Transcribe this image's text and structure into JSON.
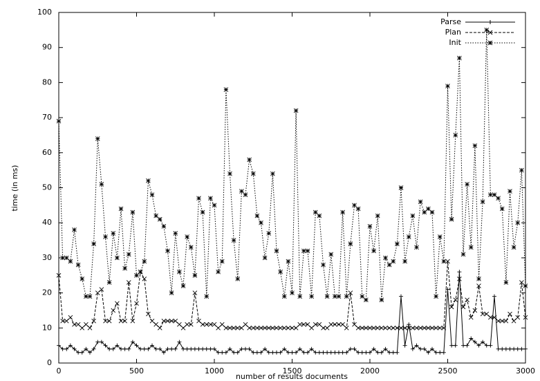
{
  "chart_data": {
    "type": "line",
    "xlabel": "number of results documents",
    "ylabel": "time (in ms)",
    "xlim": [
      0,
      3000
    ],
    "xticks": [
      0,
      500,
      1000,
      1500,
      2000,
      2500,
      3000
    ],
    "ylim": [
      0,
      100
    ],
    "yticks": [
      0,
      10,
      20,
      30,
      40,
      50,
      60,
      70,
      80,
      90,
      100
    ],
    "legend": "top-right",
    "x": [
      0,
      25,
      50,
      75,
      100,
      125,
      150,
      175,
      200,
      225,
      250,
      275,
      300,
      325,
      350,
      375,
      400,
      425,
      450,
      475,
      500,
      525,
      550,
      575,
      600,
      625,
      650,
      675,
      700,
      725,
      750,
      775,
      800,
      825,
      850,
      875,
      900,
      925,
      950,
      975,
      1000,
      1025,
      1050,
      1075,
      1100,
      1125,
      1150,
      1175,
      1200,
      1225,
      1250,
      1275,
      1300,
      1325,
      1350,
      1375,
      1400,
      1425,
      1450,
      1475,
      1500,
      1525,
      1550,
      1575,
      1600,
      1625,
      1650,
      1675,
      1700,
      1725,
      1750,
      1775,
      1800,
      1825,
      1850,
      1875,
      1900,
      1925,
      1950,
      1975,
      2000,
      2025,
      2050,
      2075,
      2100,
      2125,
      2150,
      2175,
      2200,
      2225,
      2250,
      2275,
      2300,
      2325,
      2350,
      2375,
      2400,
      2425,
      2450,
      2475,
      2500,
      2525,
      2550,
      2575,
      2600,
      2625,
      2650,
      2675,
      2700,
      2725,
      2750,
      2775,
      2800,
      2825,
      2850,
      2875,
      2900,
      2925,
      2950,
      2975,
      3000
    ],
    "series": [
      {
        "name": "Parse",
        "color": "#000000",
        "dash": "solid",
        "marker": "plus",
        "values": [
          5,
          4,
          4,
          5,
          4,
          3,
          3,
          4,
          3,
          4,
          6,
          6,
          5,
          4,
          4,
          5,
          4,
          4,
          4,
          6,
          5,
          4,
          4,
          4,
          5,
          4,
          4,
          3,
          4,
          4,
          4,
          6,
          4,
          4,
          4,
          4,
          4,
          4,
          4,
          4,
          4,
          3,
          3,
          3,
          4,
          3,
          3,
          4,
          4,
          4,
          3,
          3,
          3,
          4,
          3,
          3,
          3,
          3,
          4,
          3,
          3,
          3,
          4,
          3,
          3,
          4,
          3,
          3,
          3,
          3,
          3,
          3,
          3,
          3,
          3,
          4,
          4,
          3,
          3,
          3,
          3,
          4,
          3,
          3,
          4,
          3,
          3,
          3,
          19,
          5,
          11,
          4,
          5,
          4,
          4,
          3,
          4,
          3,
          3,
          3,
          21,
          5,
          5,
          26,
          5,
          5,
          7,
          6,
          5,
          6,
          5,
          5,
          19,
          4,
          4,
          4,
          4,
          4,
          4,
          4,
          4
        ]
      },
      {
        "name": "Plan",
        "color": "#000000",
        "dash": "dashed",
        "marker": "cross",
        "values": [
          25,
          12,
          12,
          13,
          11,
          11,
          10,
          11,
          10,
          12,
          20,
          21,
          12,
          12,
          15,
          17,
          12,
          12,
          23,
          12,
          17,
          26,
          24,
          14,
          12,
          11,
          10,
          12,
          12,
          12,
          12,
          11,
          10,
          11,
          11,
          20,
          12,
          11,
          11,
          11,
          11,
          10,
          11,
          10,
          10,
          10,
          10,
          10,
          11,
          10,
          10,
          10,
          10,
          10,
          10,
          10,
          10,
          10,
          10,
          10,
          10,
          10,
          11,
          11,
          11,
          10,
          11,
          11,
          10,
          10,
          11,
          11,
          11,
          11,
          10,
          20,
          11,
          10,
          10,
          10,
          10,
          10,
          10,
          10,
          10,
          10,
          10,
          10,
          10,
          10,
          10,
          10,
          10,
          10,
          10,
          10,
          10,
          10,
          10,
          10,
          29,
          16,
          18,
          24,
          16,
          18,
          13,
          15,
          22,
          14,
          14,
          13,
          13,
          12,
          12,
          12,
          14,
          12,
          13,
          23,
          13
        ]
      },
      {
        "name": "Init",
        "color": "#000000",
        "dash": "dotted",
        "marker": "star",
        "values": [
          69,
          30,
          30,
          29,
          38,
          28,
          24,
          19,
          19,
          34,
          64,
          51,
          36,
          23,
          37,
          30,
          44,
          27,
          31,
          43,
          25,
          26,
          29,
          52,
          48,
          42,
          41,
          39,
          32,
          20,
          37,
          26,
          22,
          36,
          33,
          25,
          47,
          43,
          19,
          47,
          45,
          26,
          29,
          78,
          54,
          35,
          24,
          49,
          48,
          58,
          54,
          42,
          40,
          30,
          37,
          54,
          32,
          26,
          19,
          29,
          20,
          72,
          19,
          32,
          32,
          19,
          43,
          42,
          28,
          19,
          31,
          19,
          19,
          43,
          19,
          34,
          45,
          44,
          19,
          18,
          39,
          32,
          42,
          18,
          30,
          28,
          29,
          34,
          50,
          29,
          36,
          42,
          33,
          46,
          43,
          44,
          43,
          19,
          36,
          29,
          79,
          41,
          65,
          87,
          31,
          51,
          33,
          62,
          24,
          46,
          95,
          48,
          48,
          47,
          44,
          23,
          49,
          33,
          40,
          55,
          22
        ]
      }
    ]
  }
}
